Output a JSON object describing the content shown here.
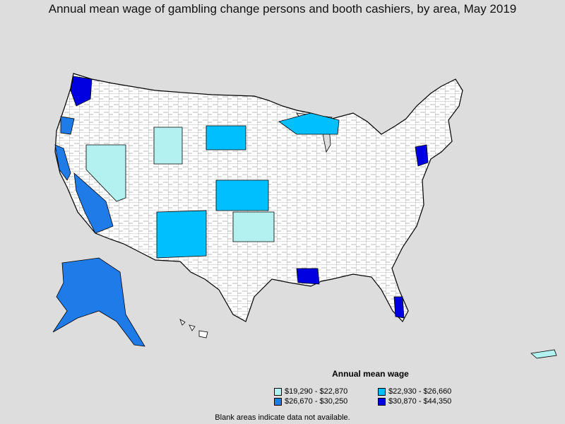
{
  "title": "Annual mean wage of gambling change persons and booth cashiers, by area, May 2019",
  "legend": {
    "title": "Annual mean wage",
    "items": [
      {
        "label": "$19,290 - $22,870",
        "color": "#b3f0f0"
      },
      {
        "label": "$22,930 - $26,660",
        "color": "#00bfff"
      },
      {
        "label": "$26,670 - $30,250",
        "color": "#1e7be8"
      },
      {
        "label": "$30,870 - $44,350",
        "color": "#0000e0"
      }
    ]
  },
  "footnote": "Blank areas indicate data not available.",
  "colors": {
    "background": "#dddddd",
    "no_data": "#ffffff",
    "border": "#000000"
  },
  "regions": [
    {
      "name": "Washington / Seattle area",
      "class": 3
    },
    {
      "name": "Oregon coast",
      "class": 2
    },
    {
      "name": "California coast",
      "class": 2
    },
    {
      "name": "Nevada",
      "class": 0
    },
    {
      "name": "Wyoming",
      "class": 0
    },
    {
      "name": "Southern California",
      "class": 2
    },
    {
      "name": "Arizona / New Mexico",
      "class": 1
    },
    {
      "name": "South Dakota",
      "class": 1
    },
    {
      "name": "Kansas",
      "class": 1
    },
    {
      "name": "Oklahoma",
      "class": 0
    },
    {
      "name": "Michigan / Wisconsin",
      "class": 1
    },
    {
      "name": "Mississippi Gulf Coast",
      "class": 3
    },
    {
      "name": "Atlantic City / New Jersey",
      "class": 3
    },
    {
      "name": "South Florida",
      "class": 3
    },
    {
      "name": "Alaska",
      "class": 2
    }
  ]
}
